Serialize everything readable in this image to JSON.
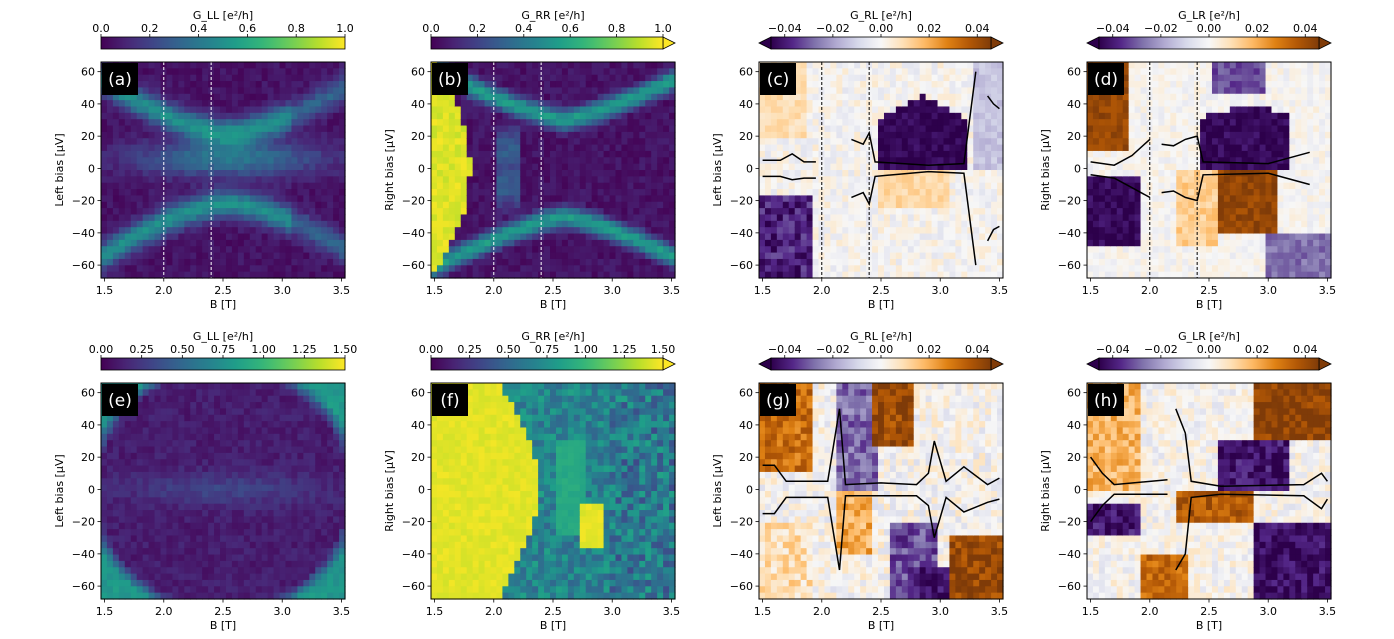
{
  "figure": {
    "colormaps": {
      "viridis": [
        "#440154",
        "#482878",
        "#3e4989",
        "#31688e",
        "#26828e",
        "#1f9e89",
        "#35b779",
        "#6ece58",
        "#b5de2b",
        "#fde725"
      ],
      "puor": [
        "#2d004b",
        "#542788",
        "#8073ac",
        "#b2abd2",
        "#d8daeb",
        "#f7f7f7",
        "#fee0b6",
        "#fdb863",
        "#e08214",
        "#b35806",
        "#7f3b08"
      ],
      "line_color": "#000000",
      "dash_white": "#ffffff"
    }
  },
  "chart_data": [
    {
      "id": "a",
      "panel_label": "(a)",
      "type": "heatmap",
      "cmap": "viridis",
      "colorbar": {
        "label": "G_LL [e²/h]",
        "ticks": [
          "0.0",
          "0.2",
          "0.4",
          "0.6",
          "0.8",
          "1.0"
        ],
        "extend": "none"
      },
      "xlabel": "B [T]",
      "ylabel": "Left bias [μV]",
      "xticks": [
        "1.5",
        "2.0",
        "2.5",
        "3.0",
        "3.5"
      ],
      "yticks": [
        "60",
        "40",
        "20",
        "0",
        "−20",
        "−40",
        "−60"
      ],
      "xlim": [
        1.47,
        3.53
      ],
      "ylim": [
        -68,
        66
      ],
      "vlines": [
        2.0,
        2.4
      ],
      "vline_color": "white"
    },
    {
      "id": "b",
      "panel_label": "(b)",
      "type": "heatmap",
      "cmap": "viridis",
      "colorbar": {
        "label": "G_RR [e²/h]",
        "ticks": [
          "0.0",
          "0.2",
          "0.4",
          "0.6",
          "0.8",
          "1.0"
        ],
        "extend": "max"
      },
      "xlabel": "B [T]",
      "ylabel": "Right bias [μV]",
      "xticks": [
        "1.5",
        "2.0",
        "2.5",
        "3.0",
        "3.5"
      ],
      "yticks": [
        "60",
        "40",
        "20",
        "0",
        "−20",
        "−40",
        "−60"
      ],
      "xlim": [
        1.47,
        3.53
      ],
      "ylim": [
        -68,
        66
      ],
      "vlines": [
        2.0,
        2.4
      ],
      "vline_color": "white"
    },
    {
      "id": "c",
      "panel_label": "(c)",
      "type": "heatmap",
      "cmap": "puor",
      "colorbar": {
        "label": "G_RL [e²/h]",
        "ticks": [
          "−0.04",
          "−0.02",
          "0.00",
          "0.02",
          "0.04"
        ],
        "extend": "both"
      },
      "xlabel": "B [T]",
      "ylabel": "Left bias [μV]",
      "xticks": [
        "1.5",
        "2.0",
        "2.5",
        "3.0",
        "3.5"
      ],
      "yticks": [
        "60",
        "40",
        "20",
        "0",
        "−20",
        "−40",
        "−60"
      ],
      "xlim": [
        1.47,
        3.53
      ],
      "ylim": [
        -68,
        66
      ],
      "vlines": [
        2.0,
        2.4
      ],
      "vline_color": "black"
    },
    {
      "id": "d",
      "panel_label": "(d)",
      "type": "heatmap",
      "cmap": "puor",
      "colorbar": {
        "label": "G_LR [e²/h]",
        "ticks": [
          "−0.04",
          "−0.02",
          "0.00",
          "0.02",
          "0.04"
        ],
        "extend": "both"
      },
      "xlabel": "B [T]",
      "ylabel": "Right bias [μV]",
      "xticks": [
        "1.5",
        "2.0",
        "2.5",
        "3.0",
        "3.5"
      ],
      "yticks": [
        "60",
        "40",
        "20",
        "0",
        "−20",
        "−40",
        "−60"
      ],
      "xlim": [
        1.47,
        3.53
      ],
      "ylim": [
        -68,
        66
      ],
      "vlines": [
        2.0,
        2.4
      ],
      "vline_color": "black"
    },
    {
      "id": "e",
      "panel_label": "(e)",
      "type": "heatmap",
      "cmap": "viridis",
      "colorbar": {
        "label": "G_LL [e²/h]",
        "ticks": [
          "0.00",
          "0.25",
          "0.50",
          "0.75",
          "1.00",
          "1.25",
          "1.50"
        ],
        "extend": "none"
      },
      "xlabel": "B [T]",
      "ylabel": "Left bias [μV]",
      "xticks": [
        "1.5",
        "2.0",
        "2.5",
        "3.0",
        "3.5"
      ],
      "yticks": [
        "60",
        "40",
        "20",
        "0",
        "−20",
        "−40",
        "−60"
      ],
      "xlim": [
        1.47,
        3.53
      ],
      "ylim": [
        -68,
        66
      ],
      "vlines": []
    },
    {
      "id": "f",
      "panel_label": "(f)",
      "type": "heatmap",
      "cmap": "viridis",
      "colorbar": {
        "label": "G_RR [e²/h]",
        "ticks": [
          "0.00",
          "0.25",
          "0.50",
          "0.75",
          "1.00",
          "1.25",
          "1.50"
        ],
        "extend": "max"
      },
      "xlabel": "B [T]",
      "ylabel": "Right bias [μV]",
      "xticks": [
        "1.5",
        "2.0",
        "2.5",
        "3.0",
        "3.5"
      ],
      "yticks": [
        "60",
        "40",
        "20",
        "0",
        "−20",
        "−40",
        "−60"
      ],
      "xlim": [
        1.47,
        3.53
      ],
      "ylim": [
        -68,
        66
      ],
      "vlines": []
    },
    {
      "id": "g",
      "panel_label": "(g)",
      "type": "heatmap",
      "cmap": "puor",
      "colorbar": {
        "label": "G_RL [e²/h]",
        "ticks": [
          "−0.04",
          "−0.02",
          "0.00",
          "0.02",
          "0.04"
        ],
        "extend": "both"
      },
      "xlabel": "B [T]",
      "ylabel": "Left bias [μV]",
      "xticks": [
        "1.5",
        "2.0",
        "2.5",
        "3.0",
        "3.5"
      ],
      "yticks": [
        "60",
        "40",
        "20",
        "0",
        "−20",
        "−40",
        "−60"
      ],
      "xlim": [
        1.47,
        3.53
      ],
      "ylim": [
        -68,
        66
      ],
      "vlines": []
    },
    {
      "id": "h",
      "panel_label": "(h)",
      "type": "heatmap",
      "cmap": "puor",
      "colorbar": {
        "label": "G_LR [e²/h]",
        "ticks": [
          "−0.04",
          "−0.02",
          "0.00",
          "0.02",
          "0.04"
        ],
        "extend": "both"
      },
      "xlabel": "B [T]",
      "ylabel": "Right bias [μV]",
      "xticks": [
        "1.5",
        "2.0",
        "2.5",
        "3.0",
        "3.5"
      ],
      "yticks": [
        "60",
        "40",
        "20",
        "0",
        "−20",
        "−40",
        "−60"
      ],
      "xlim": [
        1.47,
        3.53
      ],
      "ylim": [
        -68,
        66
      ],
      "vlines": []
    }
  ]
}
